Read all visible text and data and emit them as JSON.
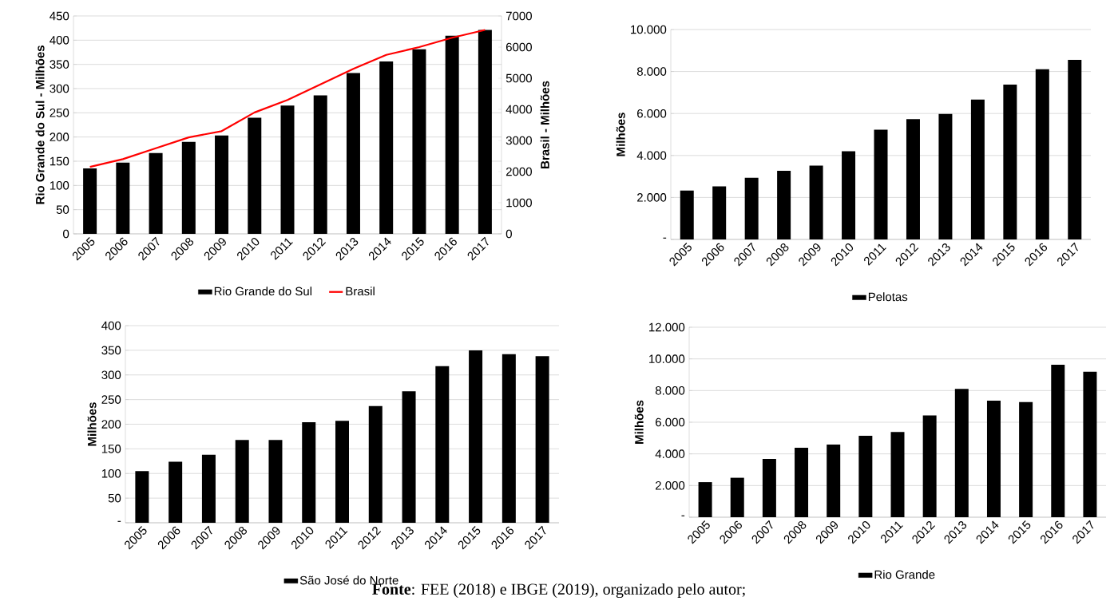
{
  "chart_data": [
    {
      "type": "bar",
      "categories": [
        "2005",
        "2006",
        "2007",
        "2008",
        "2009",
        "2010",
        "2011",
        "2012",
        "2013",
        "2014",
        "2015",
        "2016",
        "2017"
      ],
      "ylabel": "Rio Grande do Sul - Milhões",
      "y2label": "Brasil - Milhões",
      "ylim": [
        0,
        450
      ],
      "yticks": [
        0,
        50,
        100,
        150,
        200,
        250,
        300,
        350,
        400,
        450
      ],
      "y2lim": [
        0,
        7000
      ],
      "y2ticks": [
        0,
        1000,
        2000,
        3000,
        4000,
        5000,
        6000,
        7000
      ],
      "grid": "y",
      "legend": "bottom",
      "series": [
        {
          "name": "Rio Grande do Sul",
          "color": "#000000",
          "values": [
            135,
            147,
            167,
            190,
            203,
            240,
            265,
            286,
            332,
            356,
            381,
            409,
            421
          ]
        },
        {
          "name": "Brasil",
          "type": "line",
          "axis": "y2",
          "color": "#ff0000",
          "values": [
            2150,
            2400,
            2750,
            3100,
            3300,
            3900,
            4300,
            4800,
            5300,
            5750,
            6000,
            6300,
            6550
          ]
        }
      ]
    },
    {
      "type": "bar",
      "categories": [
        "2005",
        "2006",
        "2007",
        "2008",
        "2009",
        "2010",
        "2011",
        "2012",
        "2013",
        "2014",
        "2015",
        "2016",
        "2017"
      ],
      "ylabel": "Milhões",
      "ylim": [
        0,
        10000
      ],
      "yticks": [
        {
          "value": 0,
          "label": "-"
        },
        {
          "value": 2000,
          "label": "2.000"
        },
        {
          "value": 4000,
          "label": "4.000"
        },
        {
          "value": 6000,
          "label": "6.000"
        },
        {
          "value": 8000,
          "label": "8.000"
        },
        {
          "value": 10000,
          "label": "10.000"
        }
      ],
      "grid": "y",
      "legend": "bottom",
      "series": [
        {
          "name": "Pelotas",
          "color": "#000000",
          "values": [
            2325,
            2525,
            2940,
            3270,
            3520,
            4200,
            5230,
            5730,
            5980,
            6660,
            7375,
            8105,
            8555
          ]
        }
      ]
    },
    {
      "type": "bar",
      "categories": [
        "2005",
        "2006",
        "2007",
        "2008",
        "2009",
        "2010",
        "2011",
        "2012",
        "2013",
        "2014",
        "2015",
        "2016",
        "2017"
      ],
      "ylabel": "Milhões",
      "ylim": [
        0,
        400
      ],
      "yticks": [
        {
          "value": 0,
          "label": "-"
        },
        50,
        100,
        150,
        200,
        250,
        300,
        350,
        400
      ],
      "grid": "y",
      "legend": "bottom",
      "series": [
        {
          "name": "São José do Norte",
          "color": "#000000",
          "values": [
            105,
            124,
            138,
            168,
            168,
            204,
            207,
            237,
            267,
            318,
            350,
            342,
            338
          ]
        }
      ]
    },
    {
      "type": "bar",
      "categories": [
        "2005",
        "2006",
        "2007",
        "2008",
        "2009",
        "2010",
        "2011",
        "2012",
        "2013",
        "2014",
        "2015",
        "2016",
        "2017"
      ],
      "ylabel": "Milhões",
      "ylim": [
        0,
        12000
      ],
      "yticks": [
        {
          "value": 0,
          "label": "-"
        },
        {
          "value": 2000,
          "label": "2.000"
        },
        {
          "value": 4000,
          "label": "4.000"
        },
        {
          "value": 6000,
          "label": "6.000"
        },
        {
          "value": 8000,
          "label": "8.000"
        },
        {
          "value": 10000,
          "label": "10.000"
        },
        {
          "value": 12000,
          "label": "12.000"
        }
      ],
      "grid": "y",
      "legend": "bottom",
      "annotations": [
        "**Fonte**: FEE (2018) e IBGE (2019), organizado pelo autor;"
      ],
      "series": [
        {
          "name": "Rio Grande",
          "color": "#000000",
          "values": [
            2214,
            2491,
            3677,
            4389,
            4587,
            5140,
            5378,
            6425,
            8106,
            7355,
            7276,
            9629,
            9194
          ]
        }
      ]
    }
  ]
}
